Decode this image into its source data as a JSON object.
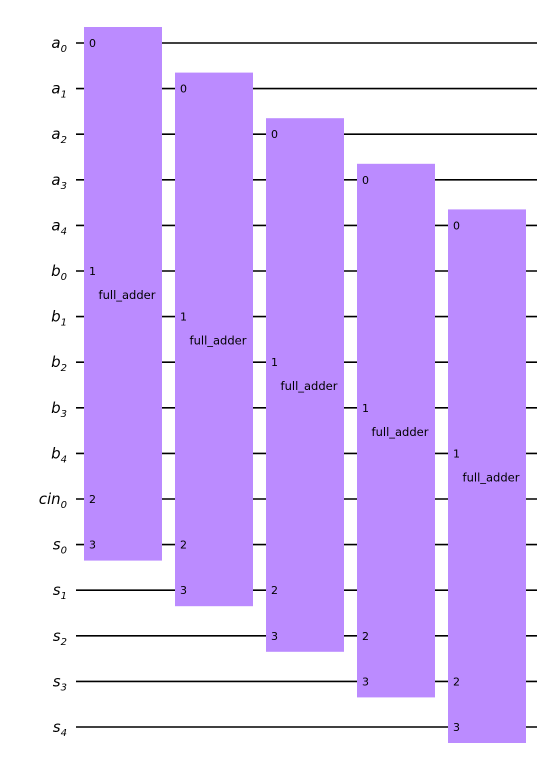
{
  "qubits": [
    {
      "base": "a",
      "sub": "0"
    },
    {
      "base": "a",
      "sub": "1"
    },
    {
      "base": "a",
      "sub": "2"
    },
    {
      "base": "a",
      "sub": "3"
    },
    {
      "base": "a",
      "sub": "4"
    },
    {
      "base": "b",
      "sub": "0"
    },
    {
      "base": "b",
      "sub": "1"
    },
    {
      "base": "b",
      "sub": "2"
    },
    {
      "base": "b",
      "sub": "3"
    },
    {
      "base": "b",
      "sub": "4"
    },
    {
      "base": "cin",
      "sub": "0"
    },
    {
      "base": "s",
      "sub": "0"
    },
    {
      "base": "s",
      "sub": "1"
    },
    {
      "base": "s",
      "sub": "2"
    },
    {
      "base": "s",
      "sub": "3"
    },
    {
      "base": "s",
      "sub": "4"
    }
  ],
  "gates": [
    {
      "name": "full_adder",
      "ports": [
        {
          "label": "0",
          "qubit": 0
        },
        {
          "label": "1",
          "qubit": 5
        },
        {
          "label": "2",
          "qubit": 10
        },
        {
          "label": "3",
          "qubit": 11
        }
      ]
    },
    {
      "name": "full_adder",
      "ports": [
        {
          "label": "0",
          "qubit": 1
        },
        {
          "label": "1",
          "qubit": 6
        },
        {
          "label": "2",
          "qubit": 11
        },
        {
          "label": "3",
          "qubit": 12
        }
      ]
    },
    {
      "name": "full_adder",
      "ports": [
        {
          "label": "0",
          "qubit": 2
        },
        {
          "label": "1",
          "qubit": 7
        },
        {
          "label": "2",
          "qubit": 12
        },
        {
          "label": "3",
          "qubit": 13
        }
      ]
    },
    {
      "name": "full_adder",
      "ports": [
        {
          "label": "0",
          "qubit": 3
        },
        {
          "label": "1",
          "qubit": 8
        },
        {
          "label": "2",
          "qubit": 13
        },
        {
          "label": "3",
          "qubit": 14
        }
      ]
    },
    {
      "name": "full_adder",
      "ports": [
        {
          "label": "0",
          "qubit": 4
        },
        {
          "label": "1",
          "qubit": 9
        },
        {
          "label": "2",
          "qubit": 14
        },
        {
          "label": "3",
          "qubit": 15
        }
      ]
    }
  ],
  "colors": {
    "gate_fill": "#bb8bff",
    "wire": "#000000"
  }
}
